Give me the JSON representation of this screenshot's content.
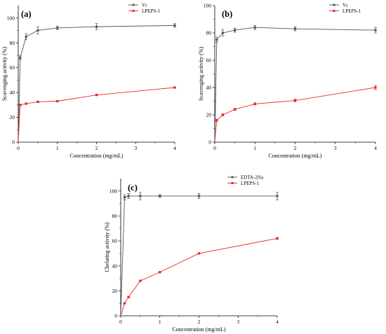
{
  "chart_data": [
    {
      "type": "line",
      "panel_label": "(a)",
      "xlabel": "Concentration (mg/mL)",
      "ylabel": "Scavenging activity (%)",
      "xlim": [
        0,
        4
      ],
      "ylim": [
        0,
        110
      ],
      "xticks": [
        0,
        1,
        2,
        3,
        4
      ],
      "yticks": [
        0,
        20,
        40,
        60,
        80,
        100
      ],
      "grid": false,
      "legend_position": "top-right",
      "series": [
        {
          "name": "Vc",
          "color": "#555555",
          "marker": "square",
          "x": [
            0,
            0.05,
            0.2,
            0.5,
            1,
            2,
            4
          ],
          "y": [
            0,
            68,
            85,
            90,
            92,
            93,
            94
          ],
          "err": [
            0,
            1.5,
            2.5,
            3,
            1.5,
            2.5,
            1.5
          ]
        },
        {
          "name": "LPEPS-1",
          "color": "#e8282b",
          "marker": "square",
          "x": [
            0,
            0.05,
            0.2,
            0.5,
            1,
            2,
            4
          ],
          "y": [
            0,
            30,
            31,
            32.5,
            33,
            38,
            44
          ],
          "err": [
            0,
            0.6,
            0.6,
            0.6,
            0.6,
            0.6,
            0.6
          ]
        }
      ]
    },
    {
      "type": "line",
      "panel_label": "(b)",
      "xlabel": "Concentration (mg/mL)",
      "ylabel": "Scavenging activity (%)",
      "xlim": [
        0,
        4
      ],
      "ylim": [
        0,
        100
      ],
      "xticks": [
        0,
        1,
        2,
        3,
        4
      ],
      "yticks": [
        0,
        20,
        40,
        60,
        80,
        100
      ],
      "grid": false,
      "legend_position": "top-right",
      "series": [
        {
          "name": "Vc",
          "color": "#555555",
          "marker": "square",
          "x": [
            0,
            0.05,
            0.2,
            0.5,
            1,
            2,
            4
          ],
          "y": [
            0,
            75,
            80,
            82,
            84,
            83,
            82
          ],
          "err": [
            0,
            2,
            2.5,
            1.5,
            1.5,
            1.5,
            2
          ]
        },
        {
          "name": "LPEPS-1",
          "color": "#e8282b",
          "marker": "square",
          "x": [
            0,
            0.05,
            0.2,
            0.5,
            1,
            2,
            4
          ],
          "y": [
            0,
            16,
            20,
            24,
            28,
            30.5,
            40
          ],
          "err": [
            0,
            0.8,
            0.8,
            0.8,
            0.8,
            1,
            1.5
          ]
        }
      ]
    },
    {
      "type": "line",
      "panel_label": "(c)",
      "xlabel": "Concentration (mg/mL)",
      "ylabel": "Chelating activity (%)",
      "xlim": [
        0,
        4
      ],
      "ylim": [
        0,
        110
      ],
      "xticks": [
        0,
        1,
        2,
        3,
        4
      ],
      "yticks": [
        0,
        20,
        40,
        60,
        80,
        100
      ],
      "grid": false,
      "legend_position": "top-right",
      "series": [
        {
          "name": "EDTA-2Na",
          "color": "#555555",
          "marker": "square",
          "x": [
            0,
            0.1,
            0.2,
            0.5,
            1,
            2,
            4
          ],
          "y": [
            0,
            95,
            96,
            96,
            96,
            96,
            96
          ],
          "err": [
            0,
            2,
            2,
            3,
            1,
            2,
            3
          ]
        },
        {
          "name": "LPEPS-1",
          "color": "#e8282b",
          "marker": "square",
          "x": [
            0,
            0.1,
            0.2,
            0.5,
            1,
            2,
            4
          ],
          "y": [
            0,
            10,
            15,
            28,
            35,
            50,
            62
          ],
          "err": [
            0,
            0.5,
            0.5,
            0.5,
            0.5,
            0.6,
            0.8
          ]
        }
      ]
    }
  ]
}
